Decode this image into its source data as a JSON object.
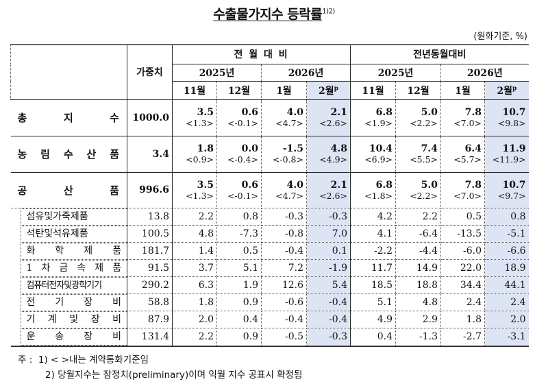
{
  "title": "수출물가지수 등락률",
  "title_footnote": "1)2)",
  "unit": "(원화기준, %)",
  "header": {
    "weight_label": "가중치",
    "group_mom": "전 월 대 비",
    "group_yoy": "전년동월대비",
    "year_2025": "2025년",
    "year_2026": "2026년",
    "months": [
      "11월",
      "12월",
      "1월",
      "2월"
    ],
    "prelim_mark": "p"
  },
  "rows_main": [
    {
      "label": "총 지 수",
      "weight": "1000.0",
      "mom": [
        "3.5",
        "0.6",
        "4.0",
        "2.1"
      ],
      "mom_contract": [
        "<1.3>",
        "<-0.1>",
        "<4.7>",
        "<2.6>"
      ],
      "yoy": [
        "6.8",
        "5.0",
        "7.8",
        "10.7"
      ],
      "yoy_contract": [
        "<1.9>",
        "<2.2>",
        "<7.0>",
        "<9.8>"
      ]
    },
    {
      "label": "농 림 수 산 품",
      "weight": "3.4",
      "mom": [
        "1.8",
        "0.0",
        "-1.5",
        "4.8"
      ],
      "mom_contract": [
        "<0.9>",
        "<-0.4>",
        "<-0.8>",
        "<4.9>"
      ],
      "yoy": [
        "10.4",
        "7.4",
        "6.4",
        "11.9"
      ],
      "yoy_contract": [
        "<6.9>",
        "<5.5>",
        "<5.7>",
        "<11.9>"
      ]
    },
    {
      "label": "공 산 품",
      "weight": "996.6",
      "mom": [
        "3.5",
        "0.6",
        "4.0",
        "2.1"
      ],
      "mom_contract": [
        "<1.3>",
        "<-0.1>",
        "<4.7>",
        "<2.6>"
      ],
      "yoy": [
        "6.8",
        "5.0",
        "7.8",
        "10.7"
      ],
      "yoy_contract": [
        "<1.8>",
        "<2.2>",
        "<7.0>",
        "<9.7>"
      ]
    }
  ],
  "rows_sub": [
    {
      "label": "섬유및가죽제품",
      "weight": "13.8",
      "mom": [
        "2.2",
        "0.8",
        "-0.3",
        "-0.3"
      ],
      "yoy": [
        "4.2",
        "2.2",
        "0.5",
        "0.8"
      ]
    },
    {
      "label": "석탄및석유제품",
      "weight": "100.5",
      "mom": [
        "4.8",
        "-7.3",
        "-0.8",
        "7.0"
      ],
      "yoy": [
        "4.1",
        "-6.4",
        "-13.5",
        "-5.1"
      ]
    },
    {
      "label": "화 학 제 품",
      "weight": "181.7",
      "mom": [
        "1.4",
        "0.5",
        "-0.4",
        "0.1"
      ],
      "yoy": [
        "-2.2",
        "-4.4",
        "-6.0",
        "-6.6"
      ]
    },
    {
      "label": "1 차 금 속 제 품",
      "weight": "91.5",
      "mom": [
        "3.7",
        "5.1",
        "7.2",
        "-1.9"
      ],
      "yoy": [
        "11.7",
        "14.9",
        "22.0",
        "18.9"
      ]
    },
    {
      "label": "컴퓨터전자및광학기기",
      "weight": "290.2",
      "mom": [
        "6.3",
        "1.9",
        "12.6",
        "5.4"
      ],
      "yoy": [
        "18.5",
        "18.8",
        "34.4",
        "44.1"
      ]
    },
    {
      "label": "전 기 장 비",
      "weight": "58.8",
      "mom": [
        "1.8",
        "0.9",
        "-0.6",
        "-0.4"
      ],
      "yoy": [
        "5.1",
        "4.8",
        "2.4",
        "2.4"
      ]
    },
    {
      "label": "기 계 및 장 비",
      "weight": "87.9",
      "mom": [
        "2.0",
        "0.4",
        "-0.4",
        "-0.4"
      ],
      "yoy": [
        "4.9",
        "2.9",
        "1.8",
        "2.0"
      ]
    },
    {
      "label": "운 송 장 비",
      "weight": "131.4",
      "mom": [
        "2.2",
        "0.9",
        "-0.5",
        "-0.3"
      ],
      "yoy": [
        "0.4",
        "-1.3",
        "-2.7",
        "-3.1"
      ]
    }
  ],
  "notes": {
    "prefix": "주 :",
    "note1": "1) < >내는 계약통화기준임",
    "note2": "2) 당월지수는 잠정치(preliminary)이며 익월 지수 공표시 확정됨"
  },
  "colors": {
    "highlight": "#dde4f4"
  }
}
